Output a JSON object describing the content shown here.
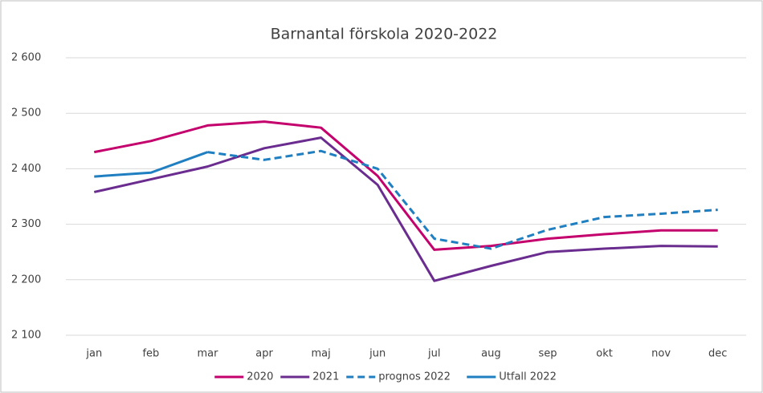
{
  "chart_data": {
    "type": "line",
    "title": "Barnantal förskola 2020-2022",
    "categories": [
      "jan",
      "feb",
      "mar",
      "apr",
      "maj",
      "jun",
      "jul",
      "aug",
      "sep",
      "okt",
      "nov",
      "dec"
    ],
    "series": [
      {
        "name": "2020",
        "color": "#c4006c",
        "dashed": false,
        "values": [
          2430,
          2450,
          2478,
          2485,
          2474,
          2387,
          2254,
          2261,
          2274,
          2282,
          2289,
          2289
        ]
      },
      {
        "name": "2021",
        "color": "#6a2d8f",
        "dashed": false,
        "values": [
          2358,
          2381,
          2404,
          2437,
          2456,
          2371,
          2198,
          2225,
          2250,
          2256,
          2261,
          2260
        ]
      },
      {
        "name": "prognos 2022",
        "color": "#1f7fc1",
        "dashed": true,
        "values": [
          null,
          null,
          2430,
          2416,
          2432,
          2400,
          2274,
          2256,
          2290,
          2313,
          2319,
          2326
        ]
      },
      {
        "name": "Utfall 2022",
        "color": "#1f7fc1",
        "dashed": false,
        "values": [
          2386,
          2393,
          2430,
          null,
          null,
          null,
          null,
          null,
          null,
          null,
          null,
          null
        ]
      }
    ],
    "ylim": [
      2100,
      2600
    ],
    "yticks": [
      {
        "value": 2100,
        "label": "2 100"
      },
      {
        "value": 2200,
        "label": "2 200"
      },
      {
        "value": 2300,
        "label": "2 300"
      },
      {
        "value": 2400,
        "label": "2 400"
      },
      {
        "value": 2500,
        "label": "2 500"
      },
      {
        "value": 2600,
        "label": "2 600"
      }
    ],
    "grid": true,
    "legend": "bottom"
  }
}
